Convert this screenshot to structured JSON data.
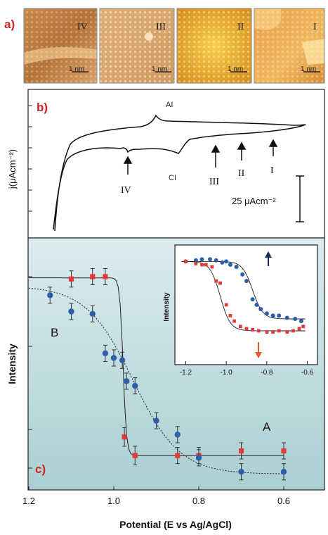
{
  "panel_a": {
    "label": "a)",
    "images": [
      {
        "numeral": "IV",
        "scalebar": "1 nm",
        "palette": "brown"
      },
      {
        "numeral": "III",
        "scalebar": "1 nm",
        "palette": "tan"
      },
      {
        "numeral": "II",
        "scalebar": "1 nm",
        "palette": "gold"
      },
      {
        "numeral": "I",
        "scalebar": "1 nm",
        "palette": "orange"
      }
    ]
  },
  "panel_b": {
    "label": "b)",
    "ylabel": "j(μAcm⁻²)",
    "peak_anodic": "AI",
    "peak_cathodic": "CI",
    "arrows": [
      "IV",
      "III",
      "II",
      "I"
    ],
    "scale_label": "25 μAcm⁻²"
  },
  "panel_c": {
    "label": "c)",
    "ylabel": "Intensity",
    "xlabel": "Potential (E vs Ag/AgCl)",
    "series_label_B": "B",
    "series_label_A": "A",
    "inset_ylabel": "Intensity"
  },
  "colors": {
    "panel_label": "#d0201c",
    "red_series": "#e03a3a",
    "blue_series": "#2e5ea8",
    "panel_c_bg_top": "#dcecef",
    "panel_c_bg_bottom": "#aacfd3",
    "inset_arrow_up": "#1c2a5a",
    "inset_arrow_down": "#e05a2a"
  },
  "chart_data": [
    {
      "type": "scatter",
      "title": "",
      "xlabel": "Potential (E vs Ag/AgCl)",
      "ylabel": "Intensity",
      "xlim": [
        1.2,
        0.6
      ],
      "ylim": [
        0,
        1
      ],
      "x_reversed": true,
      "xticks": [
        "1.2",
        "1.0",
        "0.8",
        "0.6"
      ],
      "series": [
        {
          "name": "A",
          "color": "#e03a3a",
          "marker": "square",
          "fit": "solid step",
          "x": [
            1.1,
            1.05,
            1.02,
            0.975,
            0.95,
            0.85,
            0.8,
            0.7,
            0.6
          ],
          "y": [
            0.89,
            0.9,
            0.9,
            0.21,
            0.13,
            0.13,
            0.13,
            0.15,
            0.15
          ],
          "err": [
            0.035,
            0.035,
            0.035,
            0.04,
            0.04,
            0.035,
            0.035,
            0.035,
            0.035
          ]
        },
        {
          "name": "B",
          "color": "#2e5ea8",
          "marker": "circle",
          "fit": "dotted sigmoid",
          "x": [
            1.15,
            1.1,
            1.05,
            1.02,
            1.0,
            0.98,
            0.97,
            0.95,
            0.9,
            0.85,
            0.8,
            0.7,
            0.6
          ],
          "y": [
            0.82,
            0.75,
            0.74,
            0.57,
            0.55,
            0.54,
            0.45,
            0.43,
            0.28,
            0.22,
            0.12,
            0.06,
            0.06
          ],
          "err": [
            0.035,
            0.035,
            0.035,
            0.035,
            0.035,
            0.035,
            0.035,
            0.035,
            0.035,
            0.035,
            0.035,
            0.035,
            0.035
          ]
        }
      ]
    },
    {
      "type": "scatter",
      "title": "inset",
      "xlabel": "",
      "ylabel": "Intensity",
      "xlim": [
        -1.25,
        -0.55
      ],
      "ylim": [
        0,
        1
      ],
      "xticks": [
        "-1.2",
        "-1.0",
        "-0.8",
        "-0.6"
      ],
      "series": [
        {
          "name": "",
          "color": "#2e5ea8",
          "marker": "circle",
          "x": [
            -1.2,
            -1.15,
            -1.12,
            -1.08,
            -1.05,
            -1.02,
            -1.0,
            -0.98,
            -0.95,
            -0.92,
            -0.9,
            -0.87,
            -0.85,
            -0.83,
            -0.8,
            -0.77,
            -0.74,
            -0.7,
            -0.66,
            -0.63
          ],
          "y": [
            0.9,
            0.91,
            0.92,
            0.92,
            0.91,
            0.89,
            0.9,
            0.87,
            0.85,
            0.78,
            0.72,
            0.55,
            0.5,
            0.46,
            0.42,
            0.4,
            0.4,
            0.38,
            0.37,
            0.35
          ]
        },
        {
          "name": "",
          "color": "#e03a3a",
          "marker": "square",
          "x": [
            -1.2,
            -1.15,
            -1.12,
            -1.1,
            -1.07,
            -1.05,
            -1.03,
            -1.0,
            -0.98,
            -0.96,
            -0.93,
            -0.9,
            -0.87,
            -0.84,
            -0.8,
            -0.77,
            -0.74,
            -0.7,
            -0.67,
            -0.64,
            -0.62
          ],
          "y": [
            0.9,
            0.88,
            0.87,
            0.87,
            0.85,
            0.72,
            0.7,
            0.5,
            0.4,
            0.35,
            0.3,
            0.28,
            0.27,
            0.26,
            0.25,
            0.25,
            0.26,
            0.25,
            0.26,
            0.28,
            0.3
          ]
        }
      ]
    }
  ]
}
